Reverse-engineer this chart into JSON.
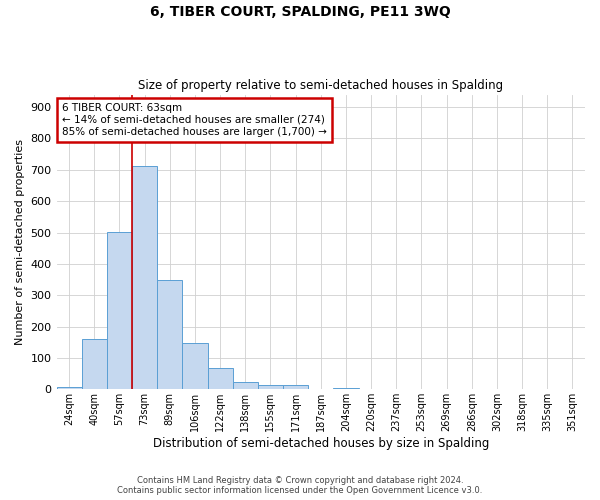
{
  "title": "6, TIBER COURT, SPALDING, PE11 3WQ",
  "subtitle": "Size of property relative to semi-detached houses in Spalding",
  "xlabel": "Distribution of semi-detached houses by size in Spalding",
  "ylabel": "Number of semi-detached properties",
  "categories": [
    "24sqm",
    "40sqm",
    "57sqm",
    "73sqm",
    "89sqm",
    "106sqm",
    "122sqm",
    "138sqm",
    "155sqm",
    "171sqm",
    "187sqm",
    "204sqm",
    "220sqm",
    "237sqm",
    "253sqm",
    "269sqm",
    "286sqm",
    "302sqm",
    "318sqm",
    "335sqm",
    "351sqm"
  ],
  "values": [
    7,
    160,
    503,
    712,
    348,
    148,
    68,
    22,
    13,
    13,
    0,
    5,
    0,
    0,
    0,
    0,
    0,
    0,
    0,
    0,
    0
  ],
  "bar_color": "#c5d8ef",
  "bar_edge_color": "#5a9fd4",
  "red_line_x": 2.5,
  "annotation_title": "6 TIBER COURT: 63sqm",
  "annotation_line1": "← 14% of semi-detached houses are smaller (274)",
  "annotation_line2": "85% of semi-detached houses are larger (1,700) →",
  "annotation_box_color": "#ffffff",
  "annotation_box_edge": "#cc0000",
  "red_line_color": "#cc0000",
  "ylim": [
    0,
    940
  ],
  "yticks": [
    0,
    100,
    200,
    300,
    400,
    500,
    600,
    700,
    800,
    900
  ],
  "background_color": "#ffffff",
  "grid_color": "#d0d0d0",
  "footer1": "Contains HM Land Registry data © Crown copyright and database right 2024.",
  "footer2": "Contains public sector information licensed under the Open Government Licence v3.0."
}
